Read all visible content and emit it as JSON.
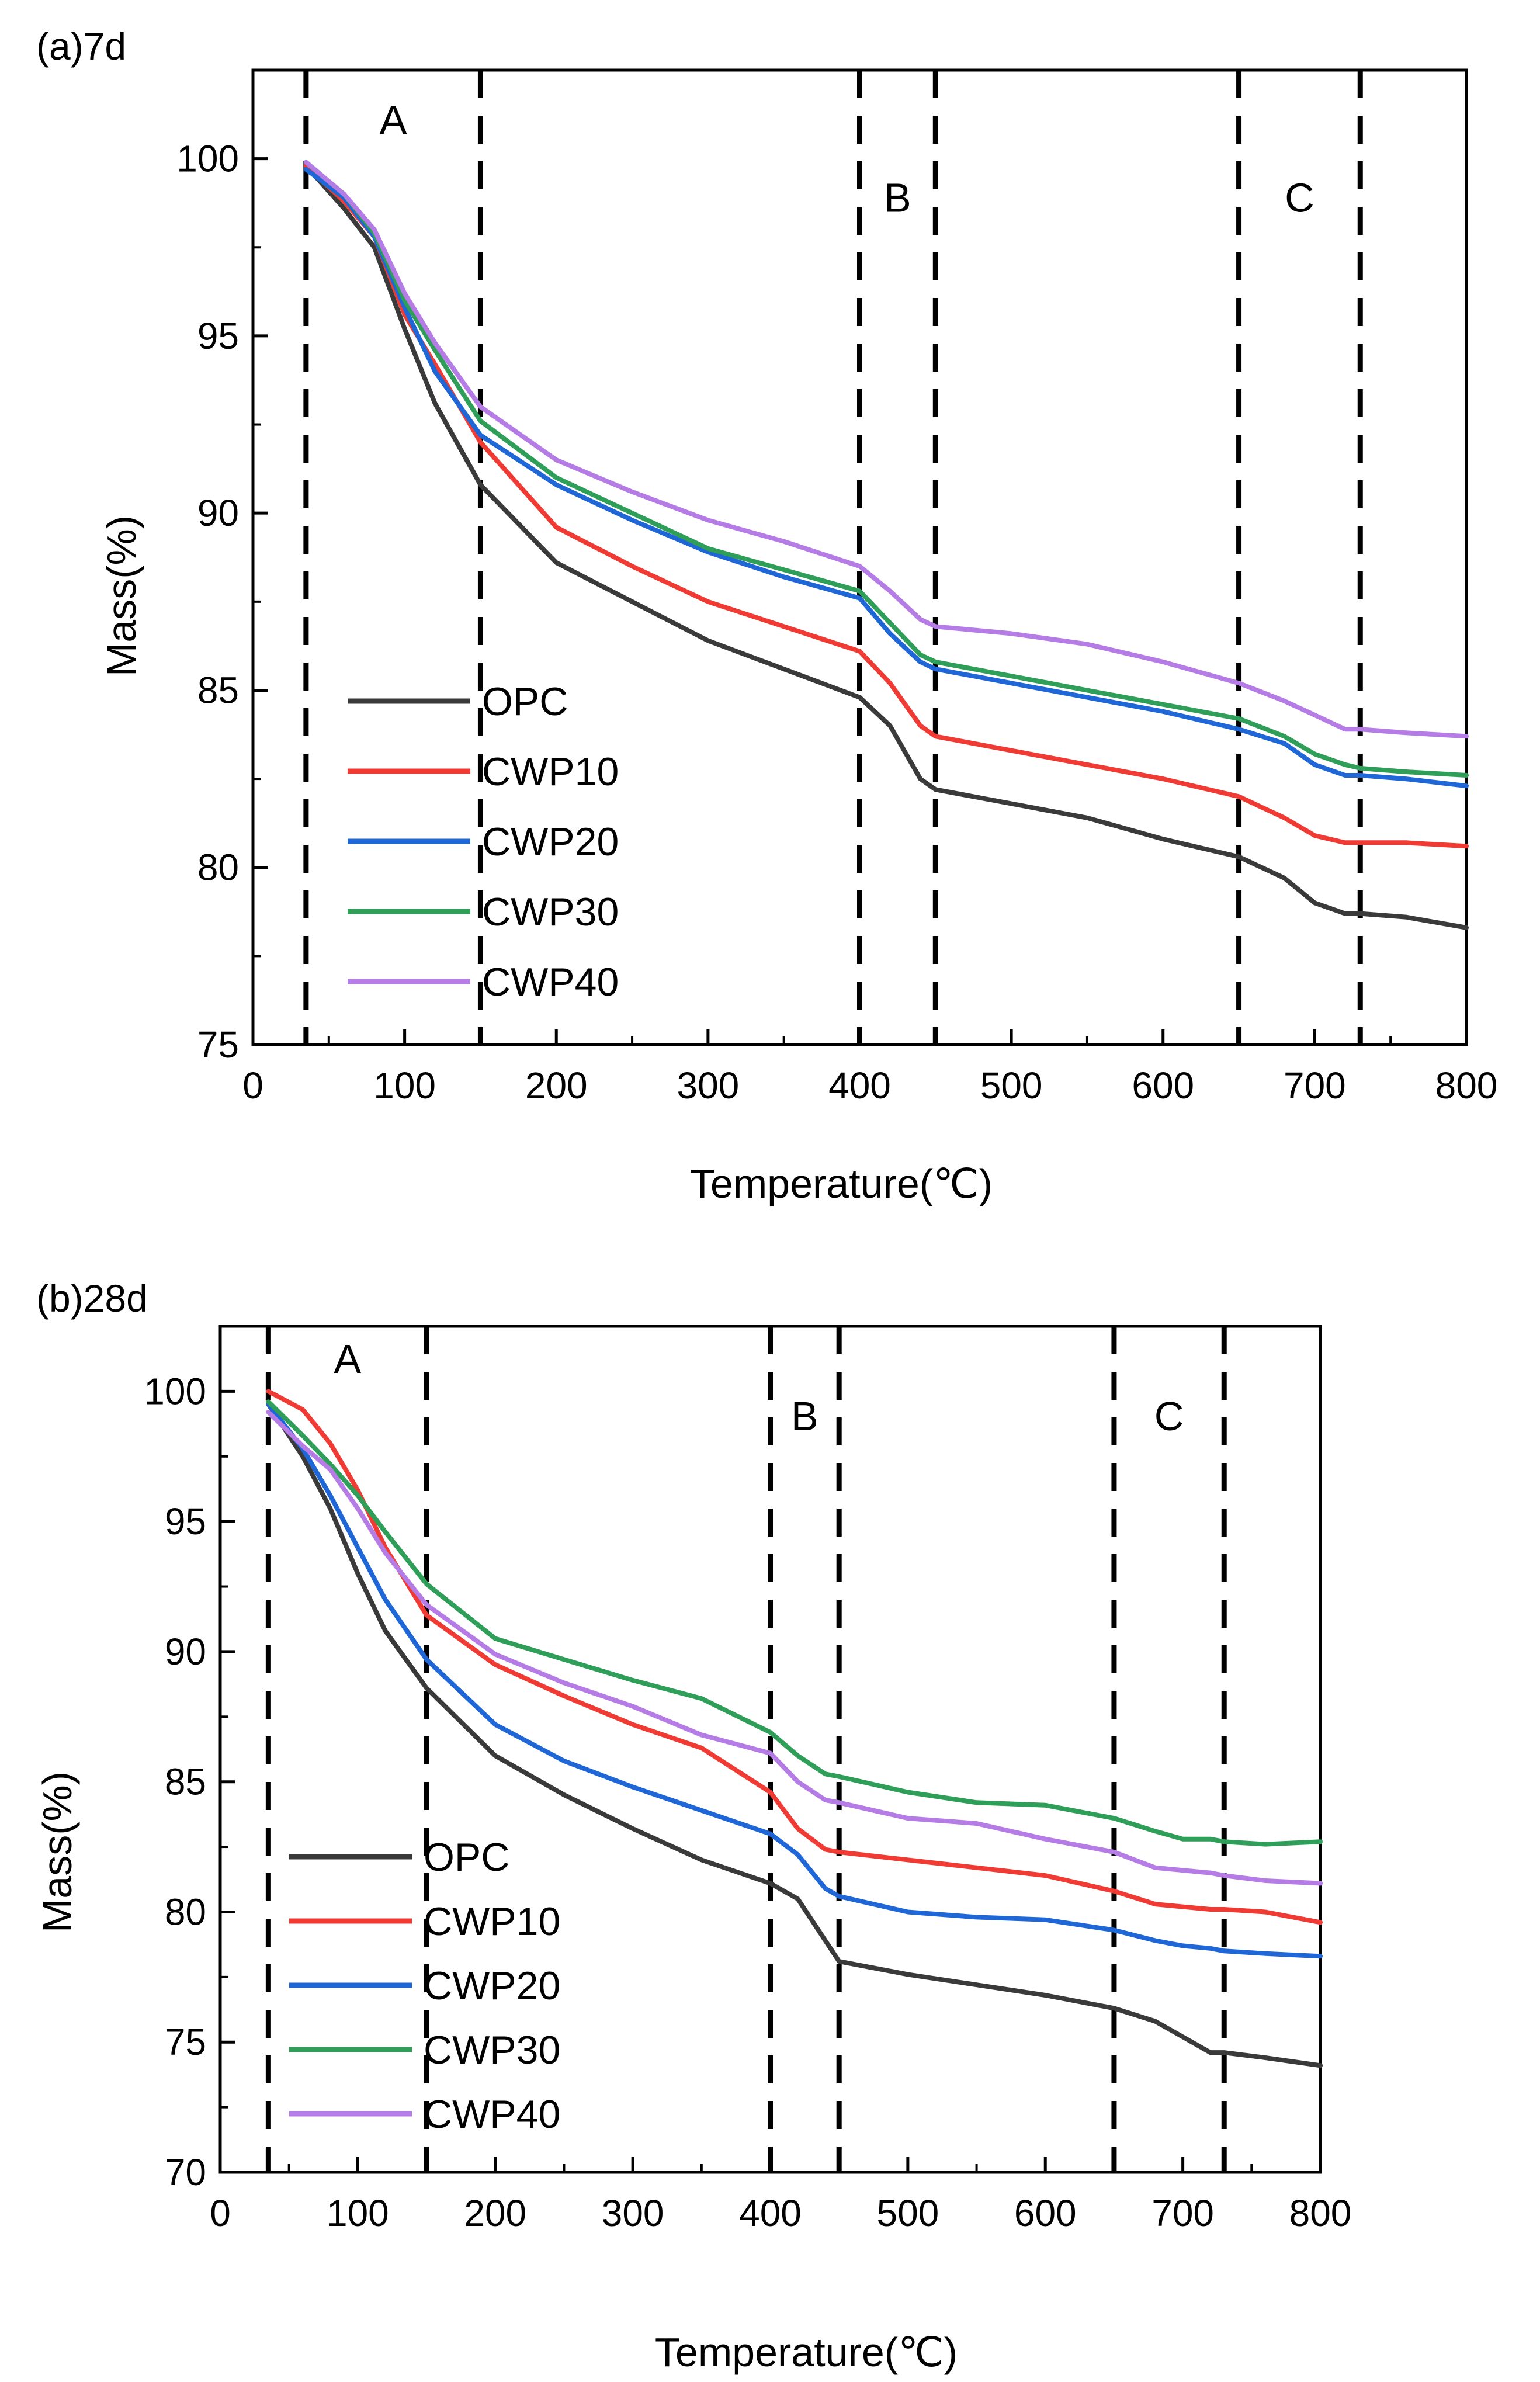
{
  "chart_data": [
    {
      "type": "line",
      "title": "(a)7d",
      "xlabel": "Temperature(℃)",
      "ylabel": "Mass(%)",
      "xlim": [
        0,
        800
      ],
      "ylim": [
        75,
        102.5
      ],
      "xticks": [
        0,
        100,
        200,
        300,
        400,
        500,
        600,
        700,
        800
      ],
      "yticks": [
        75,
        80,
        85,
        90,
        95,
        100
      ],
      "grid": false,
      "legend_position": "lower-left",
      "regions": [
        {
          "label": "A",
          "x": [
            35,
            150
          ]
        },
        {
          "label": "B",
          "x": [
            400,
            450
          ]
        },
        {
          "label": "C",
          "x": [
            650,
            730
          ]
        }
      ],
      "series": [
        {
          "name": "OPC",
          "color": "#3a3a3a",
          "x": [
            35,
            60,
            80,
            100,
            120,
            150,
            200,
            250,
            300,
            350,
            400,
            420,
            440,
            450,
            500,
            550,
            600,
            650,
            680,
            700,
            720,
            730,
            760,
            800
          ],
          "y": [
            99.8,
            98.6,
            97.5,
            95.2,
            93.1,
            90.8,
            88.6,
            87.5,
            86.4,
            85.6,
            84.8,
            84.0,
            82.5,
            82.2,
            81.8,
            81.4,
            80.8,
            80.3,
            79.7,
            79.0,
            78.7,
            78.7,
            78.6,
            78.3
          ]
        },
        {
          "name": "CWP10",
          "color": "#ef3b33",
          "x": [
            35,
            60,
            80,
            100,
            120,
            150,
            200,
            250,
            300,
            350,
            400,
            420,
            440,
            450,
            500,
            550,
            600,
            650,
            680,
            700,
            720,
            730,
            760,
            800
          ],
          "y": [
            99.8,
            98.8,
            97.8,
            95.6,
            94.2,
            92.0,
            89.6,
            88.5,
            87.5,
            86.8,
            86.1,
            85.2,
            84.0,
            83.7,
            83.3,
            82.9,
            82.5,
            82.0,
            81.4,
            80.9,
            80.7,
            80.7,
            80.7,
            80.6
          ]
        },
        {
          "name": "CWP20",
          "color": "#1f66d6",
          "x": [
            35,
            60,
            80,
            100,
            120,
            150,
            200,
            250,
            300,
            350,
            400,
            420,
            440,
            450,
            500,
            550,
            600,
            650,
            680,
            700,
            720,
            730,
            760,
            800
          ],
          "y": [
            99.7,
            98.9,
            97.8,
            95.8,
            94.0,
            92.2,
            90.8,
            89.8,
            88.9,
            88.2,
            87.6,
            86.6,
            85.8,
            85.6,
            85.2,
            84.8,
            84.4,
            83.9,
            83.5,
            82.9,
            82.6,
            82.6,
            82.5,
            82.3
          ]
        },
        {
          "name": "CWP30",
          "color": "#2f9e58",
          "x": [
            35,
            60,
            80,
            100,
            120,
            150,
            200,
            250,
            300,
            350,
            400,
            420,
            440,
            450,
            500,
            550,
            600,
            650,
            680,
            700,
            720,
            730,
            760,
            800
          ],
          "y": [
            99.9,
            99.0,
            97.9,
            96.0,
            94.6,
            92.6,
            91.0,
            90.0,
            89.0,
            88.4,
            87.8,
            86.9,
            86.0,
            85.8,
            85.4,
            85.0,
            84.6,
            84.2,
            83.7,
            83.2,
            82.9,
            82.8,
            82.7,
            82.6
          ]
        },
        {
          "name": "CWP40",
          "color": "#b57ce6",
          "x": [
            35,
            60,
            80,
            100,
            120,
            150,
            200,
            250,
            300,
            350,
            400,
            420,
            440,
            450,
            500,
            550,
            600,
            650,
            680,
            700,
            720,
            730,
            760,
            800
          ],
          "y": [
            99.9,
            99.0,
            98.0,
            96.2,
            94.8,
            93.0,
            91.5,
            90.6,
            89.8,
            89.2,
            88.5,
            87.8,
            87.0,
            86.8,
            86.6,
            86.3,
            85.8,
            85.2,
            84.7,
            84.3,
            83.9,
            83.9,
            83.8,
            83.7
          ]
        }
      ]
    },
    {
      "type": "line",
      "title": "(b)28d",
      "xlabel": "Temperature(℃)",
      "ylabel": "Mass(%)",
      "xlim": [
        0,
        800
      ],
      "ylim": [
        70,
        102.5
      ],
      "xticks": [
        0,
        100,
        200,
        300,
        400,
        500,
        600,
        700,
        800
      ],
      "yticks": [
        70,
        75,
        80,
        85,
        90,
        95,
        100
      ],
      "grid": false,
      "legend_position": "lower-left",
      "regions": [
        {
          "label": "A",
          "x": [
            35,
            150
          ]
        },
        {
          "label": "B",
          "x": [
            400,
            450
          ]
        },
        {
          "label": "C",
          "x": [
            650,
            730
          ]
        }
      ],
      "series": [
        {
          "name": "OPC",
          "color": "#3a3a3a",
          "x": [
            35,
            60,
            80,
            100,
            120,
            150,
            200,
            250,
            300,
            350,
            400,
            420,
            440,
            450,
            500,
            550,
            600,
            650,
            680,
            700,
            720,
            730,
            760,
            800
          ],
          "y": [
            99.5,
            97.5,
            95.5,
            93.0,
            90.8,
            88.6,
            86.0,
            84.5,
            83.2,
            82.0,
            81.1,
            80.5,
            78.9,
            78.1,
            77.6,
            77.2,
            76.8,
            76.3,
            75.8,
            75.2,
            74.6,
            74.6,
            74.4,
            74.1
          ]
        },
        {
          "name": "CWP10",
          "color": "#ef3b33",
          "x": [
            35,
            60,
            80,
            100,
            120,
            150,
            200,
            250,
            300,
            350,
            400,
            420,
            440,
            450,
            500,
            550,
            600,
            650,
            680,
            700,
            720,
            730,
            760,
            800
          ],
          "y": [
            100.0,
            99.3,
            98.0,
            96.2,
            94.0,
            91.4,
            89.5,
            88.3,
            87.2,
            86.3,
            84.6,
            83.2,
            82.4,
            82.3,
            82.0,
            81.7,
            81.4,
            80.8,
            80.3,
            80.2,
            80.1,
            80.1,
            80.0,
            79.6
          ]
        },
        {
          "name": "CWP20",
          "color": "#1f66d6",
          "x": [
            35,
            60,
            80,
            100,
            120,
            150,
            200,
            250,
            300,
            350,
            400,
            420,
            440,
            450,
            500,
            550,
            600,
            650,
            680,
            700,
            720,
            730,
            760,
            800
          ],
          "y": [
            99.5,
            97.8,
            96.0,
            94.0,
            92.0,
            89.7,
            87.2,
            85.8,
            84.8,
            83.9,
            83.0,
            82.2,
            80.9,
            80.6,
            80.0,
            79.8,
            79.7,
            79.3,
            78.9,
            78.7,
            78.6,
            78.5,
            78.4,
            78.3
          ]
        },
        {
          "name": "CWP30",
          "color": "#2f9e58",
          "x": [
            35,
            60,
            80,
            100,
            120,
            150,
            200,
            250,
            300,
            350,
            400,
            420,
            440,
            450,
            500,
            550,
            600,
            650,
            680,
            700,
            720,
            730,
            760,
            800
          ],
          "y": [
            99.6,
            98.3,
            97.2,
            96.0,
            94.6,
            92.6,
            90.5,
            89.7,
            88.9,
            88.2,
            86.9,
            86.0,
            85.3,
            85.2,
            84.6,
            84.2,
            84.1,
            83.6,
            83.1,
            82.8,
            82.8,
            82.7,
            82.6,
            82.7
          ]
        },
        {
          "name": "CWP40",
          "color": "#b57ce6",
          "x": [
            35,
            60,
            80,
            100,
            120,
            150,
            200,
            250,
            300,
            350,
            400,
            420,
            440,
            450,
            500,
            550,
            600,
            650,
            680,
            700,
            720,
            730,
            760,
            800
          ],
          "y": [
            99.2,
            97.9,
            97.0,
            95.5,
            93.8,
            91.8,
            89.9,
            88.8,
            87.9,
            86.8,
            86.1,
            85.0,
            84.3,
            84.2,
            83.6,
            83.4,
            82.8,
            82.3,
            81.7,
            81.6,
            81.5,
            81.4,
            81.2,
            81.1
          ]
        }
      ]
    }
  ]
}
